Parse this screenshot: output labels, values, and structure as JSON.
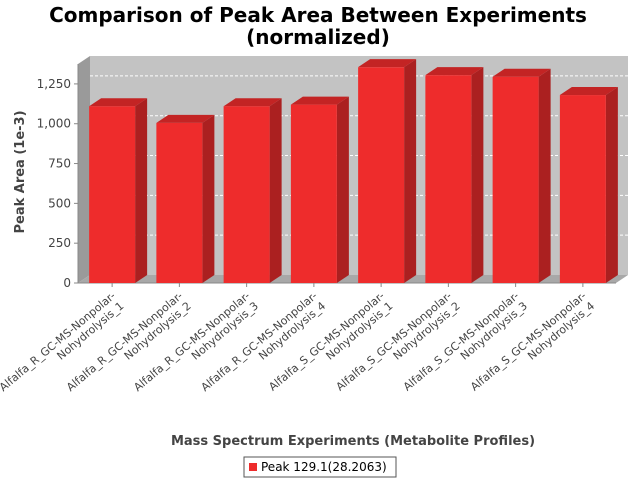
{
  "chart_data": {
    "type": "bar",
    "title_line1": "Comparison of Peak Area Between Experiments",
    "title_line2": "(normalized)",
    "xlabel": "Mass Spectrum Experiments (Metabolite Profiles)",
    "ylabel": "Peak Area (1e-3)",
    "ylim": [
      0,
      1375
    ],
    "yticks": [
      0,
      250,
      500,
      750,
      1000,
      1250
    ],
    "ytick_labels": [
      "0",
      "250",
      "500",
      "750",
      "1,000",
      "1,250"
    ],
    "grid": true,
    "legend_position": "bottom-center",
    "categories": [
      {
        "line1": "Alfalfa_R_GC-MS-Nonpolar-",
        "line2": "Nohydrolysis_1"
      },
      {
        "line1": "Alfalfa_R_GC-MS-Nonpolar-",
        "line2": "Nohydrolysis_2"
      },
      {
        "line1": "Alfalfa_R_GC-MS-Nonpolar-",
        "line2": "Nohydrolysis_3"
      },
      {
        "line1": "Alfalfa_R_GC-MS-Nonpolar-",
        "line2": "Nohydrolysis_4"
      },
      {
        "line1": "Alfalfa_S_GC-MS-Nonpolar-",
        "line2": "Nohydrolysis_1"
      },
      {
        "line1": "Alfalfa_S_GC-MS-Nonpolar-",
        "line2": "Nohydrolysis_2"
      },
      {
        "line1": "Alfalfa_S_GC-MS-Nonpolar-",
        "line2": "Nohydrolysis_3"
      },
      {
        "line1": "Alfalfa_S_GC-MS-Nonpolar-",
        "line2": "Nohydrolysis_4"
      }
    ],
    "series": [
      {
        "name": "Peak 129.1(28.2063)",
        "color": "#ee2c2c",
        "values": [
          1110,
          1005,
          1110,
          1120,
          1355,
          1305,
          1295,
          1180
        ]
      }
    ]
  }
}
